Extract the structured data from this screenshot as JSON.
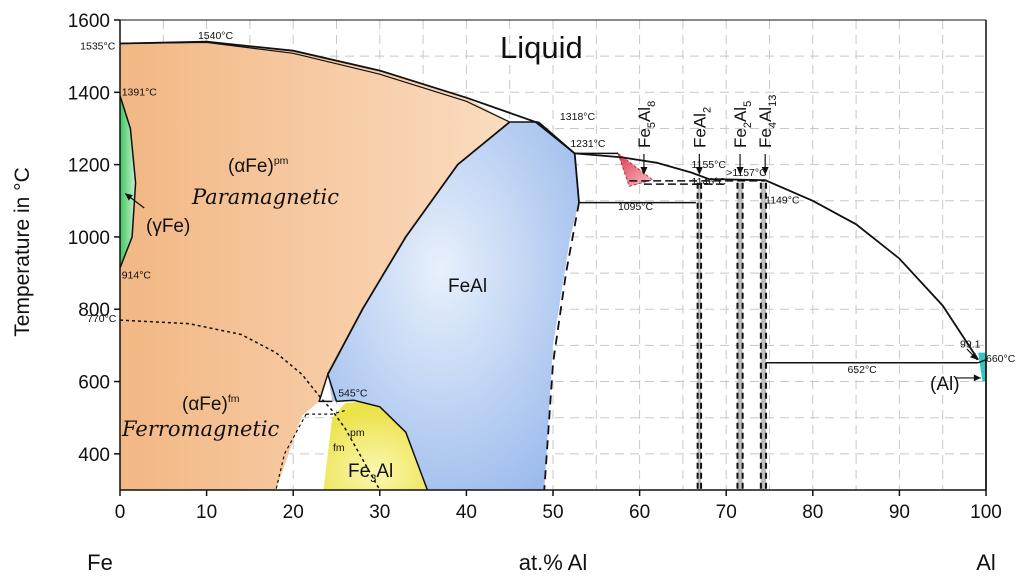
{
  "chart_data": {
    "type": "phase-diagram",
    "xlabel": "at.% Al",
    "ylabel": "Temperature in °C",
    "xlim": [
      0,
      100
    ],
    "ylim": [
      300,
      1600
    ],
    "x_ticks": [
      0,
      10,
      20,
      30,
      40,
      50,
      60,
      70,
      80,
      90,
      100
    ],
    "y_ticks": [
      400,
      600,
      800,
      1000,
      1200,
      1400,
      1600
    ],
    "x_end_labels": {
      "left": "Fe",
      "right": "Al"
    },
    "grid": true,
    "phases": {
      "liquid": "Liquid",
      "alpha_fe_pm": "(αFe)",
      "alpha_fe_pm_sup": "pm",
      "paramagnetic": "Paramagnetic",
      "gamma_fe": "(γFe)",
      "alpha_fe_fm": "(αFe)",
      "alpha_fe_fm_sup": "fm",
      "ferromagnetic": "Ferromagnetic",
      "feal": "FeAl",
      "fe3al_pre": "Fe",
      "fe3al_sub": "3",
      "fe3al_post": "Al",
      "fe3al_pm": "pm",
      "fe3al_fm": "fm",
      "al": "(Al)"
    },
    "compounds": [
      {
        "pre": "Fe",
        "sub1": "5",
        "mid": "Al",
        "sub2": "8",
        "x": 60.5
      },
      {
        "pre": "FeAl",
        "sub1": "2",
        "mid": "",
        "sub2": "",
        "x": 66.9
      },
      {
        "pre": "Fe",
        "sub1": "2",
        "mid": "Al",
        "sub2": "5",
        "x": 71.6
      },
      {
        "pre": "Fe",
        "sub1": "4",
        "mid": "Al",
        "sub2": "13",
        "x": 74.5
      }
    ],
    "temperature_labels": [
      {
        "text": "1540°C",
        "x": 9.0,
        "y": 1547
      },
      {
        "text": "1535°C",
        "x": -4.6,
        "y": 1518
      },
      {
        "text": "1391°C",
        "x": 0.2,
        "y": 1391
      },
      {
        "text": "914°C",
        "x": 0.2,
        "y": 885
      },
      {
        "text": "770°C",
        "x": -3.8,
        "y": 765
      },
      {
        "text": "1318°C",
        "x": 50.8,
        "y": 1324
      },
      {
        "text": "1231°C",
        "x": 52.0,
        "y": 1249
      },
      {
        "text": "1155°C",
        "x": 66.0,
        "y": 1191
      },
      {
        "text": ">1157°C",
        "x": 70.0,
        "y": 1168
      },
      {
        "text": "1146°C",
        "x": 66.0,
        "y": 1143
      },
      {
        "text": "1095°C",
        "x": 57.5,
        "y": 1075
      },
      {
        "text": "1149°C",
        "x": 74.5,
        "y": 1092
      },
      {
        "text": "545°C",
        "x": 25.2,
        "y": 559
      },
      {
        "text": "652°C",
        "x": 84.0,
        "y": 623
      },
      {
        "text": "99.1",
        "x": 97.0,
        "y": 694
      },
      {
        "text": "660°C",
        "x": 100.0,
        "y": 654
      }
    ],
    "liquidus": [
      [
        0,
        1535
      ],
      [
        10,
        1540
      ],
      [
        20,
        1515
      ],
      [
        30,
        1460
      ],
      [
        40,
        1385
      ],
      [
        48,
        1318
      ],
      [
        52.5,
        1231
      ],
      [
        58,
        1220
      ],
      [
        62,
        1205
      ],
      [
        66,
        1178
      ],
      [
        68,
        1160
      ],
      [
        70,
        1159
      ],
      [
        72,
        1158
      ],
      [
        74.5,
        1157
      ],
      [
        80,
        1100
      ],
      [
        85,
        1035
      ],
      [
        90,
        940
      ],
      [
        95,
        810
      ],
      [
        99.1,
        660
      ]
    ],
    "colors": {
      "alpha_fe_region": "#f6c9a0",
      "gamma_fe_region": "#8fe0a0",
      "feal_region": "#bdd3f4",
      "fe3al_region": "#f6f07a",
      "fe5al8_region": "#e86a78",
      "compound_band": "#bcbcbc",
      "al_region": "#33c4c4",
      "grid": "#c8c8c8"
    }
  }
}
